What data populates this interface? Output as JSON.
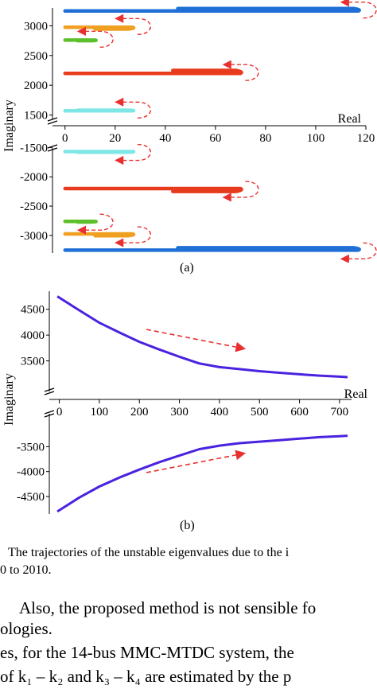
{
  "chart_data": [
    {
      "type": "line",
      "panel": "(a)",
      "xlabel": "Real",
      "ylabel": "Imaginary",
      "xlim": [
        -5,
        120
      ],
      "xticks": [
        "0",
        "20",
        "40",
        "60",
        "80",
        "100",
        "120"
      ],
      "yticks_upper": [
        "3000",
        "2500",
        "2000",
        "1500"
      ],
      "yticks_lower": [
        "-1500",
        "-2000",
        "-2500",
        "-3000"
      ],
      "upper_ylim": [
        1400,
        3300
      ],
      "lower_ylim": [
        -3300,
        -1400
      ],
      "series": [
        {
          "color": "#1f6fd6",
          "upper": {
            "x_start": 0,
            "x_end": 117,
            "y": 3250,
            "x_return": 45,
            "y_return": 3290
          },
          "lower": {
            "x_start": 0,
            "x_end": 117,
            "y": -3250,
            "x_return": 45,
            "y_return": -3210
          }
        },
        {
          "color": "#f0a020",
          "upper": {
            "x_start": 0,
            "x_end": 27,
            "y": 2975,
            "x_return": 12,
            "y_return": 2945
          },
          "lower": {
            "x_start": 0,
            "x_end": 27,
            "y": -2975,
            "x_return": 12,
            "y_return": -3005
          }
        },
        {
          "color": "#5cc02a",
          "upper": {
            "x_start": 0,
            "x_end": 12,
            "y": 2760,
            "x_return": 5,
            "y_return": 2750
          },
          "lower": {
            "x_start": 0,
            "x_end": 12,
            "y": -2760,
            "x_return": 5,
            "y_return": -2770
          }
        },
        {
          "color": "#e83a1c",
          "upper": {
            "x_start": 0,
            "x_end": 70,
            "y": 2200,
            "x_return": 43,
            "y_return": 2250
          },
          "lower": {
            "x_start": 0,
            "x_end": 70,
            "y": -2200,
            "x_return": 43,
            "y_return": -2250
          }
        },
        {
          "color": "#7fe6e6",
          "upper": {
            "x_start": 0,
            "x_end": 27,
            "y": 1570,
            "x_return": 5,
            "y_return": 1580
          },
          "lower": {
            "x_start": 0,
            "x_end": 27,
            "y": -1570,
            "x_return": 5,
            "y_return": -1580
          }
        }
      ]
    },
    {
      "type": "line",
      "panel": "(b)",
      "xlabel": "Real",
      "ylabel": "Imaginary",
      "xlim": [
        -25,
        730
      ],
      "xticks": [
        "0",
        "100",
        "200",
        "300",
        "400",
        "500",
        "600",
        "700"
      ],
      "yticks_upper": [
        "4500",
        "4000",
        "3500"
      ],
      "yticks_lower": [
        "-3500",
        "-4000",
        "-4500"
      ],
      "upper_ylim": [
        3000,
        4850
      ],
      "lower_ylim": [
        -4850,
        -3000
      ],
      "series": [
        {
          "color": "#4a22e0",
          "x": [
            -5,
            50,
            100,
            150,
            200,
            250,
            300,
            350,
            400,
            450,
            500,
            550,
            600,
            650,
            700,
            720
          ],
          "y_upper": [
            4750,
            4480,
            4240,
            4050,
            3870,
            3720,
            3580,
            3450,
            3380,
            3340,
            3300,
            3270,
            3240,
            3215,
            3195,
            3185
          ],
          "y_lower": [
            -4800,
            -4520,
            -4300,
            -4120,
            -3960,
            -3810,
            -3680,
            -3550,
            -3480,
            -3430,
            -3400,
            -3370,
            -3340,
            -3310,
            -3290,
            -3280
          ]
        }
      ]
    }
  ],
  "captions": {
    "a": "(a)",
    "b": "(b)"
  },
  "figure_caption": {
    "line1": "The trajectories of the unstable eigenvalues due to the i",
    "line2": "0 to 2010."
  },
  "body_text": {
    "line1": "Also, the proposed method is not sensible fo",
    "line2": "ologies.",
    "line3": "es, for the 14-bus MMC-MTDC system, the",
    "line4": "of  k₁ – k₂  and  k₃ – k₄  are estimated by the p"
  }
}
